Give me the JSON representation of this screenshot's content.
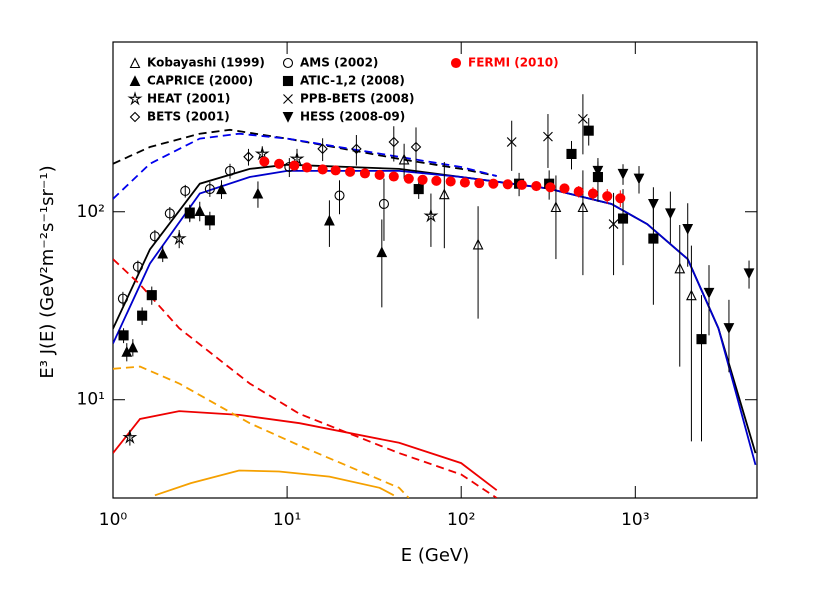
{
  "chart_data": {
    "type": "scatter",
    "xlabel": "E (GeV)",
    "ylabel": "E³ J(E) (GeV²m⁻²s⁻¹sr⁻¹)",
    "log_x": true,
    "log_y": true,
    "xlim": [
      1,
      5000
    ],
    "ylim": [
      3,
      800
    ],
    "xticks": [
      {
        "value": 1,
        "label": "10⁰"
      },
      {
        "value": 10,
        "label": "10¹"
      },
      {
        "value": 100,
        "label": "10²"
      },
      {
        "value": 1000,
        "label": "10³"
      }
    ],
    "yticks": [
      {
        "value": 10,
        "label": "10¹"
      },
      {
        "value": 100,
        "label": "10²"
      }
    ],
    "series": [
      {
        "name": "Kobayashi (1999)",
        "color": "#000000",
        "marker": "triangle-open",
        "x": [
          47,
          80,
          125,
          350,
          500,
          1800,
          2100
        ],
        "values": [
          190,
          124,
          67,
          106,
          106,
          50,
          36
        ],
        "yerr": [
          40,
          60,
          40,
          50,
          60,
          35,
          30
        ]
      },
      {
        "name": "CAPRICE (2000)",
        "color": "#000000",
        "marker": "triangle-filled",
        "x": [
          1.2,
          1.3,
          1.93,
          2.76,
          3.15,
          4.2,
          6.8,
          17.5,
          35
        ],
        "values": [
          18,
          19,
          60,
          98,
          101,
          132,
          125,
          90,
          61
        ],
        "yerr": [
          2,
          2,
          6,
          10,
          12,
          15,
          20,
          25,
          30
        ]
      },
      {
        "name": "HEAT (2001)",
        "color": "#000000",
        "marker": "star-open",
        "x": [
          1.25,
          2.4,
          7.2,
          11.4,
          67
        ],
        "values": [
          6.3,
          72,
          203,
          191,
          95
        ],
        "yerr": [
          0.6,
          8,
          20,
          25,
          30
        ]
      },
      {
        "name": "BETS (2001)",
        "color": "#000000",
        "marker": "diamond-open",
        "x": [
          6,
          16,
          25,
          41,
          55
        ],
        "values": [
          196,
          216,
          216,
          235,
          221
        ],
        "yerr": [
          20,
          30,
          40,
          50,
          60
        ]
      },
      {
        "name": "AMS (2002)",
        "color": "#000000",
        "marker": "circle-open",
        "x": [
          1.14,
          1.39,
          1.74,
          2.12,
          2.6,
          3.6,
          4.7,
          10.3,
          20,
          36
        ],
        "values": [
          34.5,
          51,
          74,
          98,
          129,
          132,
          165,
          173,
          122,
          110
        ],
        "yerr": [
          3,
          4,
          6,
          8,
          10,
          12,
          15,
          20,
          25,
          40
        ]
      },
      {
        "name": "ATIC-1,2 (2008)",
        "color": "#000000",
        "marker": "square-filled",
        "x": [
          1.15,
          1.47,
          1.67,
          2.76,
          3.6,
          57,
          215,
          320,
          430,
          540,
          610,
          850,
          1270,
          2400
        ],
        "values": [
          22,
          28,
          36,
          99,
          90,
          132,
          141,
          141,
          203,
          270,
          153,
          92,
          72,
          21
        ],
        "yerr": [
          2,
          3,
          4,
          10,
          10,
          15,
          20,
          25,
          35,
          45,
          40,
          40,
          40,
          15
        ]
      },
      {
        "name": "PPB-BETS (2008)",
        "color": "#000000",
        "marker": "cross",
        "x": [
          195,
          315,
          500,
          750
        ],
        "values": [
          235,
          251,
          312,
          86
        ],
        "yerr": [
          70,
          80,
          110,
          40
        ]
      },
      {
        "name": "HESS (2008-09)",
        "color": "#000000",
        "marker": "triangle-down-filled",
        "x": [
          610,
          850,
          1050,
          1270,
          1590,
          2000,
          2650,
          3450,
          4500
        ],
        "values": [
          165,
          159,
          150,
          110,
          98,
          81,
          37,
          24,
          47
        ],
        "yerr": [
          20,
          20,
          25,
          25,
          30,
          30,
          15,
          10,
          8
        ]
      },
      {
        "name": "FERMI (2010)",
        "color": "#ff0000",
        "marker": "circle-filled",
        "x": [
          7.4,
          9,
          11,
          13,
          16,
          19,
          23,
          28,
          34,
          41,
          50,
          60,
          72,
          87,
          105,
          127,
          153,
          185,
          223,
          270,
          325,
          392,
          473,
          571,
          690,
          820
        ],
        "values": [
          185,
          180,
          176,
          172,
          168,
          166,
          163,
          160,
          157,
          154,
          150,
          148,
          146,
          145,
          143,
          142,
          141,
          140,
          139,
          137,
          135,
          133,
          128,
          125,
          121,
          118
        ],
        "yerr": [
          4,
          4,
          4,
          4,
          4,
          4,
          4,
          4,
          4,
          4,
          4,
          4,
          4,
          4,
          5,
          5,
          5,
          5,
          6,
          6,
          7,
          8,
          9,
          10,
          11,
          12
        ]
      }
    ],
    "curves": [
      {
        "color": "#000000",
        "dash": false,
        "x": [
          1,
          1.63,
          3.15,
          6.1,
          10,
          44,
          100,
          315,
          730,
          1170,
          2000,
          3000,
          4900
        ],
        "values": [
          23.9,
          63,
          141,
          169,
          178,
          169,
          153,
          133,
          110,
          86,
          56,
          24,
          5.2
        ]
      },
      {
        "color": "#0000cc",
        "dash": false,
        "x": [
          1,
          1.63,
          3.15,
          6.1,
          10,
          44,
          100,
          315,
          730,
          1170,
          2000,
          3000,
          4900
        ],
        "values": [
          19.9,
          53,
          125,
          153,
          165,
          165,
          153,
          133,
          110,
          86,
          56,
          24,
          4.5
        ]
      },
      {
        "color": "#000000",
        "dash": true,
        "x": [
          1,
          1.63,
          3.15,
          4.7,
          10,
          44,
          100,
          160
        ],
        "values": [
          180,
          221,
          260,
          273,
          245,
          191,
          169,
          155
        ]
      },
      {
        "color": "#0000ee",
        "dash": true,
        "x": [
          1,
          1.63,
          3.15,
          5.3,
          10,
          44,
          100,
          160
        ],
        "values": [
          117,
          180,
          245,
          260,
          245,
          196,
          173,
          155
        ]
      },
      {
        "color": "#ee0000",
        "dash": true,
        "x": [
          1,
          1.43,
          2.4,
          6.1,
          11.8,
          44,
          100,
          160
        ],
        "values": [
          56,
          41,
          24,
          12.2,
          8.4,
          5.2,
          4.0,
          3.0
        ]
      },
      {
        "color": "#ee0000",
        "dash": false,
        "x": [
          1,
          1.43,
          2.4,
          5.3,
          11.8,
          44,
          100,
          160
        ],
        "values": [
          5.2,
          7.9,
          8.7,
          8.3,
          7.5,
          5.9,
          4.6,
          3.3
        ]
      },
      {
        "color": "#f5a000",
        "dash": true,
        "x": [
          1,
          1.43,
          2.4,
          6.1,
          11.8,
          44,
          50
        ],
        "values": [
          14.6,
          15,
          12.2,
          7.5,
          5.7,
          3.4,
          3
        ]
      },
      {
        "color": "#f5a000",
        "dash": false,
        "x": [
          1.74,
          2.8,
          5.3,
          9,
          17.5,
          34,
          41
        ],
        "values": [
          3.1,
          3.6,
          4.2,
          4.15,
          3.9,
          3.4,
          3.1
        ]
      }
    ]
  }
}
